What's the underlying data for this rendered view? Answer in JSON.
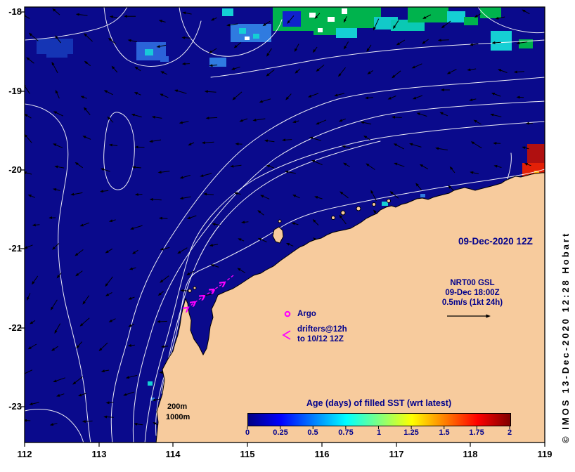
{
  "axes": {
    "x_ticks": [
      "112",
      "113",
      "114",
      "115",
      "116",
      "117",
      "118",
      "119"
    ],
    "y_ticks": [
      "-18",
      "-19",
      "-20",
      "-21",
      "-22",
      "-23"
    ],
    "x_range": [
      112,
      119
    ],
    "y_range": [
      -23.5,
      -17.9
    ]
  },
  "annotations": {
    "date_label": "09-Dec-2020 12Z",
    "gsl_line1": "NRT00 GSL",
    "gsl_line2": "09-Dec 18:00Z",
    "gsl_line3": "0.5m/s (1kt 24h)",
    "argo_label": "Argo",
    "drifters_line1": "drifters@12h",
    "drifters_line2": "to 10/12 12Z",
    "depth_200": "200m",
    "depth_1000": "1000m",
    "copyright": "© IMOS 13-Dec-2020 12:28 Hobart"
  },
  "colorbar": {
    "title": "Age (days) of filled SST (wrt latest)",
    "tick_labels": [
      "0",
      "0.25",
      "0.5",
      "0.75",
      "1",
      "1.25",
      "1.5",
      "1.75",
      "2"
    ],
    "range": [
      0,
      2
    ],
    "colormap": "jet"
  },
  "colors": {
    "ocean": "#0a0a8c",
    "land": "#f7cb9d",
    "contour": "#ffffff",
    "arrow": "#000000",
    "drifter": "#ff00ff",
    "label_navy": "#00008c"
  }
}
